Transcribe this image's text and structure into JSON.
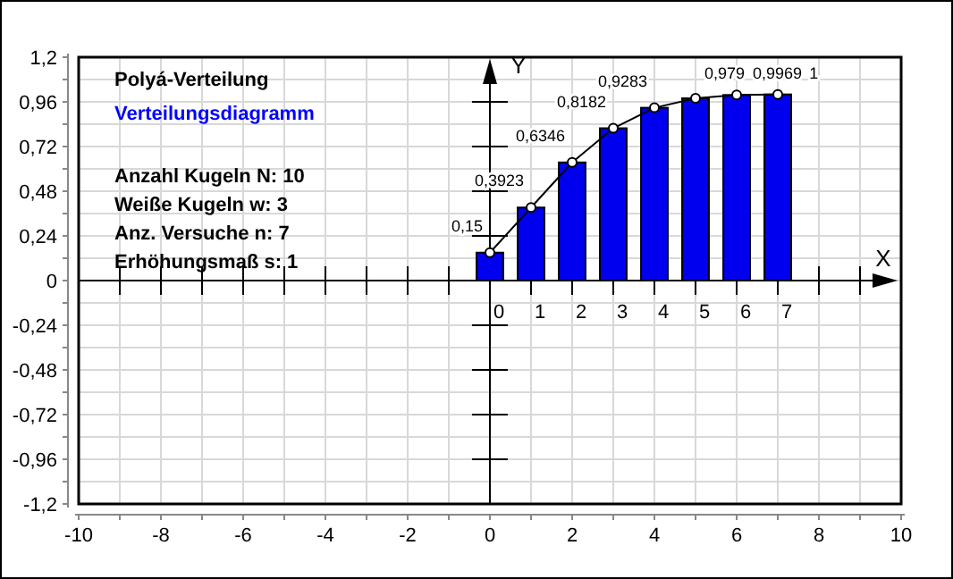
{
  "chart_data": {
    "type": "bar",
    "title": "Polyá-Verteilung",
    "subtitle": "Verteilungsdiagramm",
    "xlabel": "X",
    "ylabel": "Y",
    "annotations": [
      "Anzahl Kugeln N: 10",
      "Weiße Kugeln w: 3",
      "Anz. Versuche n: 7",
      "Erhöhungsmaß s: 1"
    ],
    "x": [
      0,
      1,
      2,
      3,
      4,
      5,
      6,
      7
    ],
    "series": [
      {
        "color": "#0000ee",
        "values": [
          0.15,
          0.3923,
          0.6346,
          0.8182,
          0.9283,
          0.979,
          0.9969,
          1
        ]
      },
      {
        "type": "line",
        "color": "#000000",
        "marker": "circle",
        "values": [
          0.15,
          0.3923,
          0.6346,
          0.8182,
          0.9283,
          0.979,
          0.9969,
          1
        ],
        "value_labels": [
          "0,15",
          "0,3923",
          "0,6346",
          "0,8182",
          "0,9283",
          "0,979",
          "0,9969",
          "1"
        ]
      }
    ],
    "x2lim": [
      -10,
      10
    ],
    "x2ticks": [
      0,
      1,
      2,
      3,
      4,
      5,
      6,
      7
    ],
    "xlim": [
      -10,
      10
    ],
    "xticks": [
      -10,
      {
        "value": -9,
        "label": null
      },
      -8,
      {
        "value": -7,
        "label": null
      },
      -6,
      {
        "value": -5,
        "label": null
      },
      -4,
      {
        "value": -3,
        "label": null
      },
      -2,
      {
        "value": -1,
        "label": null
      },
      0,
      {
        "value": 1,
        "label": null
      },
      2,
      {
        "value": 3,
        "label": null
      },
      4,
      {
        "value": 5,
        "label": null
      },
      6,
      {
        "value": 7,
        "label": null
      },
      8,
      {
        "value": 9,
        "label": null
      },
      10
    ],
    "ylim": [
      -1.2,
      1.2
    ],
    "yticks": [
      {
        "value": -1.2,
        "label": "-1,2"
      },
      {
        "value": -0.96,
        "label": "-0,96"
      },
      {
        "value": -0.72,
        "label": "-0,72"
      },
      {
        "value": -0.48,
        "label": "-0,48"
      },
      {
        "value": -0.24,
        "label": "-0,24"
      },
      0,
      {
        "value": 0.24,
        "label": "0,24"
      },
      {
        "value": 0.48,
        "label": "0,48"
      },
      {
        "value": 0.72,
        "label": "0,72"
      },
      {
        "value": 0.96,
        "label": "0,96"
      },
      {
        "value": 1.2,
        "label": "1,2"
      }
    ],
    "grid": true
  }
}
